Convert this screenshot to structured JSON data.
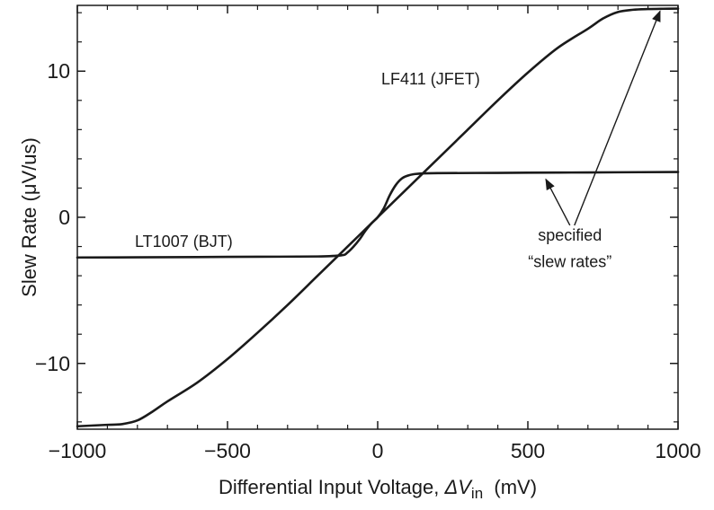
{
  "chart_data": {
    "type": "line",
    "title": "",
    "xlabel": {
      "prefix": "Differential Input Voltage, ",
      "delta": "ΔV",
      "subscript": "in",
      "suffix": "  (mV)"
    },
    "ylabel": "Slew Rate (μV/us)",
    "xlim": [
      -1000,
      1000
    ],
    "ylim": [
      -14.5,
      14.5
    ],
    "xticks": [
      -1000,
      -500,
      0,
      500,
      1000
    ],
    "xtick_labels": [
      "−1000",
      "−500",
      "0",
      "500",
      "1000"
    ],
    "yticks": [
      -10,
      0,
      10
    ],
    "ytick_labels": [
      "−10",
      "0",
      "10"
    ],
    "grid": false,
    "series": [
      {
        "name": "LF411 (JFET)",
        "color": "#1a1a1a",
        "x": [
          -1000,
          -900,
          -850,
          -800,
          -750,
          -700,
          -600,
          -500,
          -400,
          -300,
          -200,
          -100,
          0,
          100,
          200,
          300,
          400,
          500,
          600,
          700,
          750,
          800,
          850,
          900,
          950,
          1000
        ],
        "y": [
          -14.3,
          -14.2,
          -14.15,
          -13.9,
          -13.3,
          -12.6,
          -11.3,
          -9.7,
          -7.9,
          -6.0,
          -4.0,
          -2.0,
          0,
          2.0,
          4.0,
          6.0,
          8.0,
          9.9,
          11.6,
          12.9,
          13.6,
          14.05,
          14.2,
          14.25,
          14.27,
          14.28
        ]
      },
      {
        "name": "LT1007 (BJT)",
        "color": "#1a1a1a",
        "x": [
          -1000,
          -800,
          -600,
          -400,
          -200,
          -120,
          -100,
          -80,
          -60,
          -40,
          -20,
          0,
          20,
          40,
          60,
          80,
          100,
          120,
          150,
          200,
          400,
          600,
          800,
          1000
        ],
        "y": [
          -2.75,
          -2.74,
          -2.72,
          -2.7,
          -2.68,
          -2.6,
          -2.4,
          -2.0,
          -1.5,
          -0.9,
          -0.4,
          0,
          0.6,
          1.5,
          2.2,
          2.65,
          2.85,
          2.95,
          3.0,
          3.02,
          3.04,
          3.06,
          3.08,
          3.1
        ]
      }
    ],
    "annotations": [
      {
        "text": "specified",
        "x": 640,
        "y": -1.6
      },
      {
        "text": "“slew rates”",
        "x": 640,
        "y": -3.4
      }
    ],
    "arrows": [
      {
        "from": [
          640,
          -0.55
        ],
        "to": [
          560,
          2.6
        ]
      },
      {
        "from": [
          655,
          -0.55
        ],
        "to": [
          940,
          14.1
        ]
      }
    ]
  }
}
